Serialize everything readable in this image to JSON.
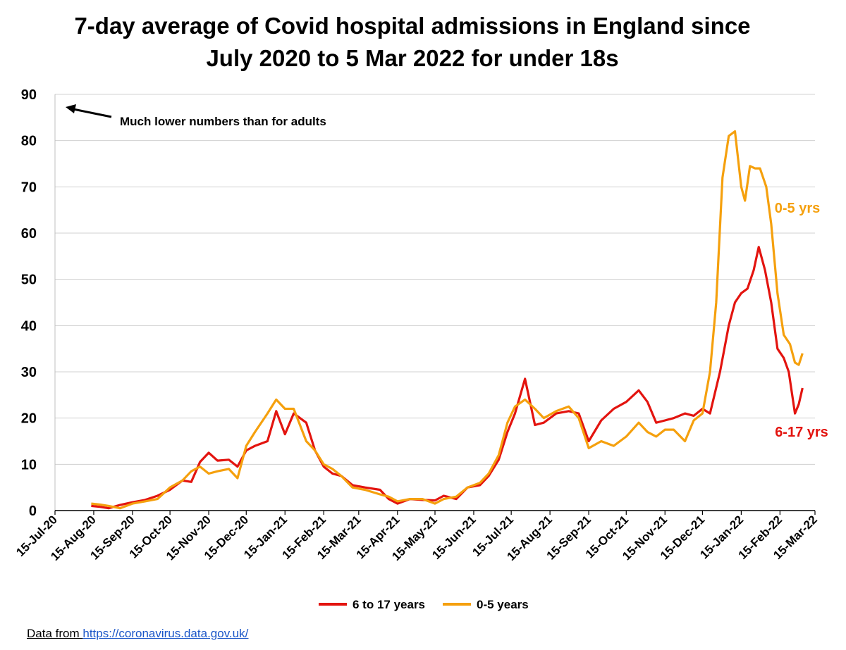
{
  "title": {
    "line1": "7-day average of Covid hospital admissions in England since",
    "line2": "July 2020 to 5 Mar 2022 for under 18s"
  },
  "source": {
    "prefix": "Data from ",
    "link": "https://coronavirus.data.gov.uk/"
  },
  "chart_data": {
    "type": "line",
    "title": "7-day average of Covid hospital admissions in England since July 2020 to 5 Mar 2022 for under 18s",
    "xlabel": "",
    "ylabel": "",
    "ylim": [
      0,
      90
    ],
    "yticks": [
      "0",
      "10",
      "20",
      "30",
      "40",
      "50",
      "60",
      "70",
      "80",
      "90"
    ],
    "xlim": [
      "2020-07-15",
      "2022-03-15"
    ],
    "xticks": [
      "15-Jul-20",
      "15-Aug-20",
      "15-Sep-20",
      "15-Oct-20",
      "15-Nov-20",
      "15-Dec-20",
      "15-Jan-21",
      "15-Feb-21",
      "15-Mar-21",
      "15-Apr-21",
      "15-May-21",
      "15-Jun-21",
      "15-Jul-21",
      "15-Aug-21",
      "15-Sep-21",
      "15-Oct-21",
      "15-Nov-21",
      "15-Dec-21",
      "15-Jan-22",
      "15-Feb-22",
      "15-Mar-22"
    ],
    "xtick_dates": [
      "2020-07-15",
      "2020-08-15",
      "2020-09-15",
      "2020-10-15",
      "2020-11-15",
      "2020-12-15",
      "2021-01-15",
      "2021-02-15",
      "2021-03-15",
      "2021-04-15",
      "2021-05-15",
      "2021-06-15",
      "2021-07-15",
      "2021-08-15",
      "2021-09-15",
      "2021-10-15",
      "2021-11-15",
      "2021-12-15",
      "2022-01-15",
      "2022-02-15",
      "2022-03-15"
    ],
    "grid": true,
    "legend_position": "bottom",
    "annotation": "Much lower numbers than for adults",
    "series": [
      {
        "name": "6 to 17 years",
        "label": "6-17 yrs",
        "color": "#e3140f",
        "points": [
          [
            "2020-08-13",
            1
          ],
          [
            "2020-08-20",
            0.8
          ],
          [
            "2020-08-27",
            0.5
          ],
          [
            "2020-09-05",
            1.2
          ],
          [
            "2020-09-15",
            1.8
          ],
          [
            "2020-09-25",
            2.3
          ],
          [
            "2020-10-05",
            3.2
          ],
          [
            "2020-10-15",
            4.5
          ],
          [
            "2020-10-25",
            6.5
          ],
          [
            "2020-11-01",
            6.2
          ],
          [
            "2020-11-08",
            10.5
          ],
          [
            "2020-11-15",
            12.5
          ],
          [
            "2020-11-22",
            10.8
          ],
          [
            "2020-12-01",
            11
          ],
          [
            "2020-12-08",
            9.5
          ],
          [
            "2020-12-15",
            13
          ],
          [
            "2020-12-22",
            14
          ],
          [
            "2021-01-01",
            15
          ],
          [
            "2021-01-08",
            21.5
          ],
          [
            "2021-01-15",
            16.5
          ],
          [
            "2021-01-22",
            21
          ],
          [
            "2021-02-01",
            19
          ],
          [
            "2021-02-08",
            13
          ],
          [
            "2021-02-15",
            9.5
          ],
          [
            "2021-02-22",
            8
          ],
          [
            "2021-03-01",
            7.5
          ],
          [
            "2021-03-10",
            5.5
          ],
          [
            "2021-03-20",
            5
          ],
          [
            "2021-04-01",
            4.5
          ],
          [
            "2021-04-08",
            2.5
          ],
          [
            "2021-04-15",
            1.5
          ],
          [
            "2021-04-25",
            2.5
          ],
          [
            "2021-05-05",
            2.3
          ],
          [
            "2021-05-15",
            2.2
          ],
          [
            "2021-05-22",
            3.2
          ],
          [
            "2021-06-01",
            2.5
          ],
          [
            "2021-06-10",
            5
          ],
          [
            "2021-06-20",
            5.5
          ],
          [
            "2021-06-27",
            7.5
          ],
          [
            "2021-07-05",
            11
          ],
          [
            "2021-07-12",
            17
          ],
          [
            "2021-07-18",
            21
          ],
          [
            "2021-07-26",
            28.5
          ],
          [
            "2021-08-03",
            18.5
          ],
          [
            "2021-08-10",
            19
          ],
          [
            "2021-08-20",
            21
          ],
          [
            "2021-08-30",
            21.5
          ],
          [
            "2021-09-07",
            21
          ],
          [
            "2021-09-15",
            15
          ],
          [
            "2021-09-25",
            19.5
          ],
          [
            "2021-10-05",
            22
          ],
          [
            "2021-10-15",
            23.5
          ],
          [
            "2021-10-25",
            26
          ],
          [
            "2021-11-01",
            23.5
          ],
          [
            "2021-11-08",
            19
          ],
          [
            "2021-11-15",
            19.5
          ],
          [
            "2021-11-22",
            20
          ],
          [
            "2021-12-01",
            21
          ],
          [
            "2021-12-08",
            20.5
          ],
          [
            "2021-12-15",
            22
          ],
          [
            "2021-12-21",
            21
          ],
          [
            "2021-12-29",
            30
          ],
          [
            "2022-01-05",
            40
          ],
          [
            "2022-01-10",
            45
          ],
          [
            "2022-01-15",
            47
          ],
          [
            "2022-01-20",
            48
          ],
          [
            "2022-01-25",
            52
          ],
          [
            "2022-01-29",
            57
          ],
          [
            "2022-02-03",
            52
          ],
          [
            "2022-02-08",
            45
          ],
          [
            "2022-02-13",
            35
          ],
          [
            "2022-02-18",
            33
          ],
          [
            "2022-02-22",
            30
          ],
          [
            "2022-02-27",
            21
          ],
          [
            "2022-03-02",
            23
          ],
          [
            "2022-03-05",
            26.5
          ]
        ]
      },
      {
        "name": "0-5 years",
        "label": "0-5 yrs",
        "color": "#f5a00d",
        "points": [
          [
            "2020-08-13",
            1.5
          ],
          [
            "2020-08-20",
            1.3
          ],
          [
            "2020-08-27",
            1
          ],
          [
            "2020-09-05",
            0.5
          ],
          [
            "2020-09-15",
            1.5
          ],
          [
            "2020-09-25",
            2
          ],
          [
            "2020-10-05",
            2.5
          ],
          [
            "2020-10-15",
            5
          ],
          [
            "2020-10-25",
            6.5
          ],
          [
            "2020-11-01",
            8.5
          ],
          [
            "2020-11-08",
            9.5
          ],
          [
            "2020-11-15",
            8
          ],
          [
            "2020-11-22",
            8.5
          ],
          [
            "2020-12-01",
            9
          ],
          [
            "2020-12-08",
            7
          ],
          [
            "2020-12-15",
            14
          ],
          [
            "2020-12-22",
            17
          ],
          [
            "2021-01-01",
            21
          ],
          [
            "2021-01-08",
            24
          ],
          [
            "2021-01-15",
            22
          ],
          [
            "2021-01-22",
            22
          ],
          [
            "2021-02-01",
            15
          ],
          [
            "2021-02-08",
            13
          ],
          [
            "2021-02-15",
            10
          ],
          [
            "2021-02-22",
            9
          ],
          [
            "2021-03-01",
            7.5
          ],
          [
            "2021-03-10",
            5
          ],
          [
            "2021-03-20",
            4.5
          ],
          [
            "2021-04-01",
            3.5
          ],
          [
            "2021-04-08",
            3
          ],
          [
            "2021-04-15",
            2
          ],
          [
            "2021-04-25",
            2.5
          ],
          [
            "2021-05-05",
            2.5
          ],
          [
            "2021-05-15",
            1.5
          ],
          [
            "2021-05-22",
            2.5
          ],
          [
            "2021-06-01",
            3
          ],
          [
            "2021-06-10",
            5
          ],
          [
            "2021-06-20",
            6
          ],
          [
            "2021-06-27",
            8
          ],
          [
            "2021-07-05",
            12
          ],
          [
            "2021-07-12",
            19
          ],
          [
            "2021-07-18",
            22.5
          ],
          [
            "2021-07-26",
            24
          ],
          [
            "2021-08-03",
            22
          ],
          [
            "2021-08-10",
            20
          ],
          [
            "2021-08-20",
            21.5
          ],
          [
            "2021-08-30",
            22.5
          ],
          [
            "2021-09-07",
            20
          ],
          [
            "2021-09-15",
            13.5
          ],
          [
            "2021-09-25",
            15
          ],
          [
            "2021-10-05",
            14
          ],
          [
            "2021-10-15",
            16
          ],
          [
            "2021-10-25",
            19
          ],
          [
            "2021-11-01",
            17
          ],
          [
            "2021-11-08",
            16
          ],
          [
            "2021-11-15",
            17.5
          ],
          [
            "2021-11-22",
            17.5
          ],
          [
            "2021-12-01",
            15
          ],
          [
            "2021-12-08",
            19.5
          ],
          [
            "2021-12-15",
            21
          ],
          [
            "2021-12-21",
            30
          ],
          [
            "2021-12-26",
            45
          ],
          [
            "2021-12-31",
            72
          ],
          [
            "2022-01-05",
            81
          ],
          [
            "2022-01-10",
            82
          ],
          [
            "2022-01-15",
            70
          ],
          [
            "2022-01-18",
            67
          ],
          [
            "2022-01-22",
            74.5
          ],
          [
            "2022-01-26",
            74
          ],
          [
            "2022-01-30",
            74
          ],
          [
            "2022-02-04",
            70
          ],
          [
            "2022-02-08",
            62
          ],
          [
            "2022-02-13",
            47
          ],
          [
            "2022-02-18",
            38
          ],
          [
            "2022-02-23",
            36
          ],
          [
            "2022-02-27",
            32
          ],
          [
            "2022-03-02",
            31.5
          ],
          [
            "2022-03-05",
            34
          ]
        ]
      }
    ]
  }
}
